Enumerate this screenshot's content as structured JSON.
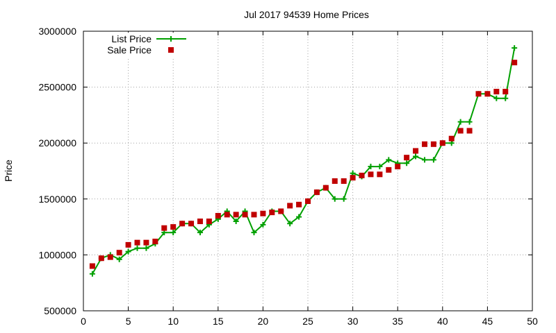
{
  "chart_data": {
    "type": "line",
    "title": "Jul 2017 94539 Home Prices",
    "xlabel": "",
    "ylabel": "Price",
    "xlim": [
      0,
      50
    ],
    "ylim": [
      500000,
      3000000
    ],
    "x_ticks": [
      0,
      5,
      10,
      15,
      20,
      25,
      30,
      35,
      40,
      45,
      50
    ],
    "y_ticks": [
      500000,
      1000000,
      1500000,
      2000000,
      2500000,
      3000000
    ],
    "grid": true,
    "legend_position": "top-left",
    "series": [
      {
        "name": "List Price",
        "style": "line-with-plus-markers",
        "color": "#00a000",
        "points": [
          [
            1,
            830000
          ],
          [
            2,
            970000
          ],
          [
            3,
            1000000
          ],
          [
            4,
            960000
          ],
          [
            5,
            1030000
          ],
          [
            6,
            1060000
          ],
          [
            7,
            1060000
          ],
          [
            8,
            1100000
          ],
          [
            9,
            1200000
          ],
          [
            10,
            1200000
          ],
          [
            11,
            1280000
          ],
          [
            12,
            1280000
          ],
          [
            13,
            1200000
          ],
          [
            14,
            1270000
          ],
          [
            15,
            1320000
          ],
          [
            16,
            1390000
          ],
          [
            17,
            1300000
          ],
          [
            18,
            1390000
          ],
          [
            19,
            1200000
          ],
          [
            20,
            1270000
          ],
          [
            21,
            1390000
          ],
          [
            22,
            1390000
          ],
          [
            23,
            1280000
          ],
          [
            24,
            1340000
          ],
          [
            25,
            1480000
          ],
          [
            26,
            1560000
          ],
          [
            27,
            1600000
          ],
          [
            28,
            1500000
          ],
          [
            29,
            1500000
          ],
          [
            30,
            1730000
          ],
          [
            31,
            1700000
          ],
          [
            32,
            1790000
          ],
          [
            33,
            1790000
          ],
          [
            34,
            1850000
          ],
          [
            35,
            1820000
          ],
          [
            36,
            1820000
          ],
          [
            37,
            1880000
          ],
          [
            38,
            1850000
          ],
          [
            39,
            1850000
          ],
          [
            40,
            2000000
          ],
          [
            41,
            2000000
          ],
          [
            42,
            2190000
          ],
          [
            43,
            2190000
          ],
          [
            44,
            2440000
          ],
          [
            45,
            2440000
          ],
          [
            46,
            2400000
          ],
          [
            47,
            2400000
          ],
          [
            48,
            2850000
          ]
        ]
      },
      {
        "name": "Sale Price",
        "style": "square-markers",
        "color": "#c00000",
        "points": [
          [
            1,
            900000
          ],
          [
            2,
            970000
          ],
          [
            3,
            980000
          ],
          [
            4,
            1020000
          ],
          [
            5,
            1090000
          ],
          [
            6,
            1110000
          ],
          [
            7,
            1110000
          ],
          [
            8,
            1120000
          ],
          [
            9,
            1240000
          ],
          [
            10,
            1250000
          ],
          [
            11,
            1280000
          ],
          [
            12,
            1280000
          ],
          [
            13,
            1300000
          ],
          [
            14,
            1300000
          ],
          [
            15,
            1350000
          ],
          [
            16,
            1360000
          ],
          [
            17,
            1360000
          ],
          [
            18,
            1360000
          ],
          [
            19,
            1360000
          ],
          [
            20,
            1370000
          ],
          [
            21,
            1380000
          ],
          [
            22,
            1390000
          ],
          [
            23,
            1440000
          ],
          [
            24,
            1450000
          ],
          [
            25,
            1480000
          ],
          [
            26,
            1560000
          ],
          [
            27,
            1600000
          ],
          [
            28,
            1660000
          ],
          [
            29,
            1660000
          ],
          [
            30,
            1690000
          ],
          [
            31,
            1710000
          ],
          [
            32,
            1720000
          ],
          [
            33,
            1720000
          ],
          [
            34,
            1760000
          ],
          [
            35,
            1790000
          ],
          [
            36,
            1870000
          ],
          [
            37,
            1930000
          ],
          [
            38,
            1990000
          ],
          [
            39,
            1990000
          ],
          [
            40,
            2000000
          ],
          [
            41,
            2040000
          ],
          [
            42,
            2110000
          ],
          [
            43,
            2110000
          ],
          [
            44,
            2440000
          ],
          [
            45,
            2440000
          ],
          [
            46,
            2460000
          ],
          [
            47,
            2460000
          ],
          [
            48,
            2720000
          ]
        ]
      }
    ]
  }
}
